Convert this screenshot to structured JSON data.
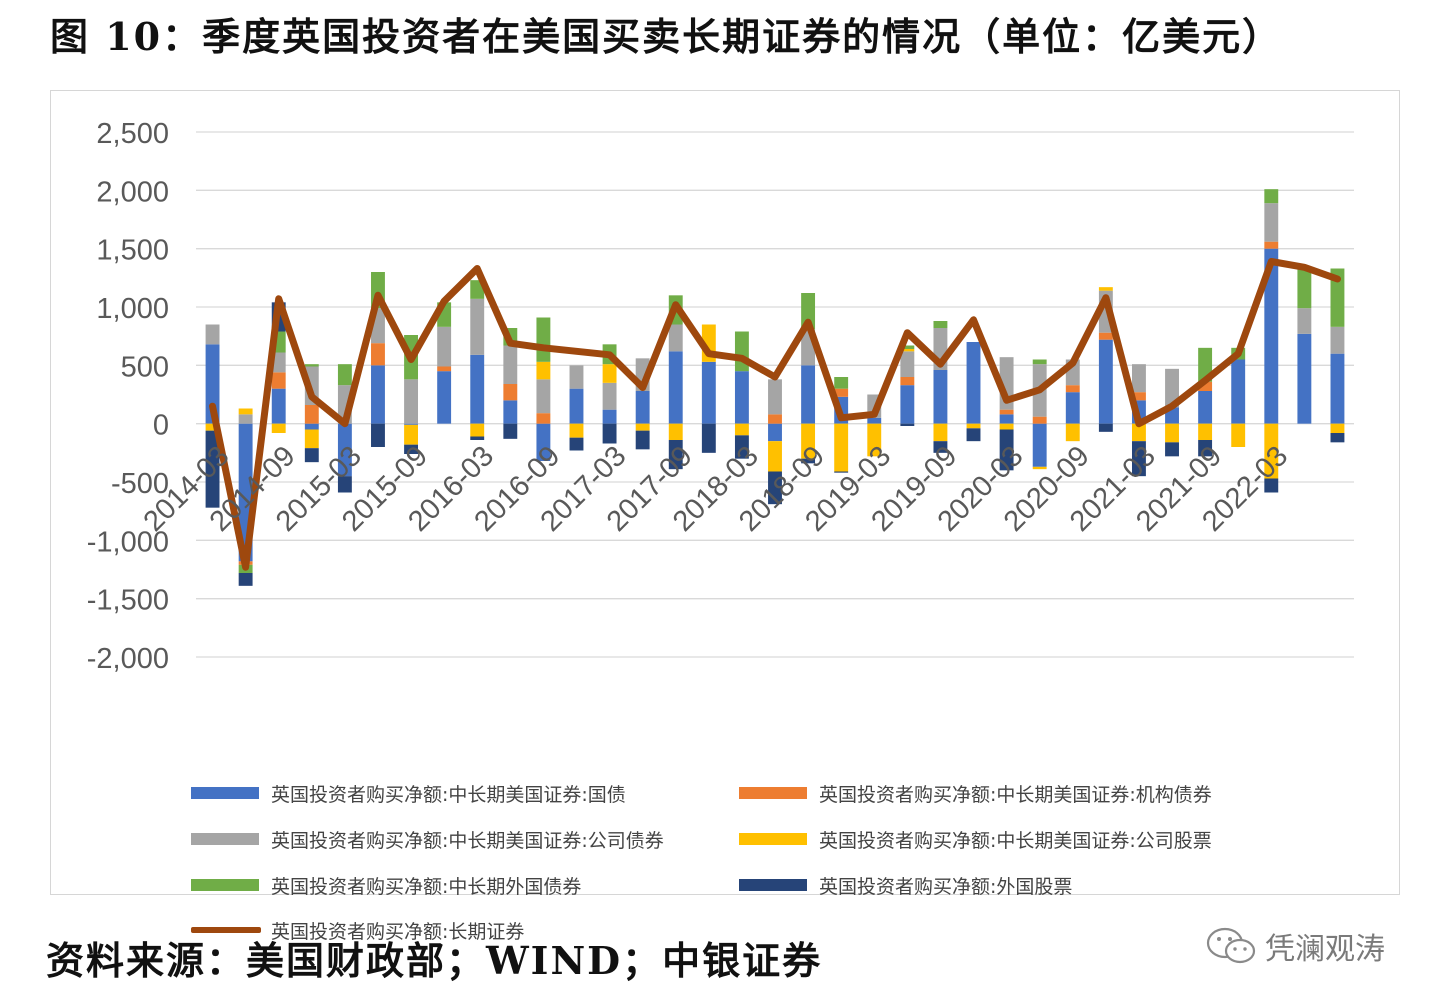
{
  "title": "图 10：季度英国投资者在美国买卖长期证券的情况（单位：亿美元）",
  "footer": "资料来源：美国财政部；WIND；中银证券",
  "watermark": "凭澜观涛",
  "colors": {
    "s1": "#4472c4",
    "s2": "#ed7d31",
    "s3": "#a5a5a5",
    "s4": "#ffc000",
    "s5": "#70ad47",
    "s6": "#264478",
    "line": "#9e480e",
    "grid": "#d9d9d9"
  },
  "chart_data": {
    "type": "bar",
    "stacked": true,
    "ylim": [
      -2000,
      2500
    ],
    "yticks": [
      2500,
      2000,
      1500,
      1000,
      500,
      0,
      -500,
      -1000,
      -1500,
      -2000
    ],
    "ytick_labels": [
      "2,500",
      "2,000",
      "1,500",
      "1,000",
      "500",
      "0",
      "-500",
      "-1,000",
      "-1,500",
      "-2,000"
    ],
    "xtick_labels": [
      "2014-03",
      "2014-09",
      "2015-03",
      "2015-09",
      "2016-03",
      "2016-09",
      "2017-03",
      "2017-09",
      "2018-03",
      "2018-09",
      "2019-03",
      "2019-09",
      "2020-03",
      "2020-09",
      "2021-03",
      "2021-09",
      "2022-03"
    ],
    "categories": [
      "2014-03",
      "2014-06",
      "2014-09",
      "2014-12",
      "2015-03",
      "2015-06",
      "2015-09",
      "2015-12",
      "2016-03",
      "2016-06",
      "2016-09",
      "2016-12",
      "2017-03",
      "2017-06",
      "2017-09",
      "2017-12",
      "2018-03",
      "2018-06",
      "2018-09",
      "2018-12",
      "2019-03",
      "2019-06",
      "2019-09",
      "2019-12",
      "2020-03",
      "2020-06",
      "2020-09",
      "2020-12",
      "2021-03",
      "2021-06",
      "2021-09",
      "2021-12",
      "2022-03",
      "2022-06",
      "2022-09"
    ],
    "grid": true,
    "legend_position": "bottom",
    "series": [
      {
        "name": "英国投资者购买净额:中长期美国证券:国债",
        "type": "bar",
        "values": [
          680,
          -1180,
          300,
          -50,
          -450,
          500,
          -10,
          450,
          590,
          200,
          -320,
          300,
          120,
          280,
          620,
          530,
          450,
          -150,
          500,
          230,
          50,
          330,
          460,
          700,
          80,
          -370,
          270,
          720,
          200,
          140,
          280,
          550,
          1500,
          770,
          600
        ]
      },
      {
        "name": "英国投资者购买净额:中长期美国证券:机构债券",
        "type": "bar",
        "values": [
          0,
          -30,
          140,
          160,
          0,
          190,
          0,
          40,
          0,
          140,
          90,
          0,
          0,
          0,
          0,
          0,
          0,
          80,
          0,
          70,
          0,
          70,
          0,
          0,
          40,
          60,
          60,
          60,
          70,
          0,
          80,
          0,
          60,
          0,
          0
        ]
      },
      {
        "name": "英国投资者购买净额:中长期美国证券:公司债券",
        "type": "bar",
        "values": [
          170,
          80,
          170,
          330,
          330,
          300,
          380,
          340,
          480,
          330,
          290,
          200,
          230,
          280,
          230,
          0,
          0,
          300,
          310,
          0,
          200,
          220,
          360,
          0,
          450,
          450,
          220,
          360,
          240,
          330,
          0,
          0,
          330,
          220,
          230
        ]
      },
      {
        "name": "英国投资者购买净额:中长期美国证券:公司股票",
        "type": "bar",
        "values": [
          -60,
          50,
          -80,
          -160,
          0,
          0,
          -170,
          0,
          -110,
          0,
          150,
          -120,
          160,
          -60,
          -140,
          320,
          -100,
          -260,
          -300,
          -410,
          -280,
          20,
          -150,
          -40,
          -50,
          -20,
          -150,
          30,
          -150,
          -160,
          -140,
          -200,
          -470,
          0,
          -80
        ]
      },
      {
        "name": "英国投资者购买净额:中长期外国债券",
        "type": "bar",
        "values": [
          0,
          -70,
          180,
          20,
          180,
          310,
          380,
          210,
          160,
          150,
          380,
          0,
          170,
          0,
          250,
          0,
          340,
          0,
          310,
          100,
          0,
          30,
          60,
          0,
          0,
          40,
          0,
          0,
          0,
          0,
          290,
          100,
          120,
          340,
          500
        ]
      },
      {
        "name": "英国投资者购买净额:外国股票",
        "type": "bar",
        "values": [
          -660,
          -110,
          250,
          -120,
          -140,
          -200,
          -80,
          0,
          -30,
          -130,
          0,
          -110,
          -170,
          -160,
          -250,
          -250,
          -200,
          -280,
          -40,
          -10,
          0,
          -20,
          -100,
          -110,
          -350,
          0,
          0,
          -70,
          -300,
          -120,
          -140,
          0,
          -120,
          0,
          -80
        ]
      },
      {
        "name": "英国投资者购买净额:长期证券",
        "type": "line",
        "values": [
          150,
          -1230,
          1070,
          230,
          0,
          1100,
          550,
          1050,
          1330,
          690,
          650,
          620,
          590,
          310,
          1020,
          600,
          560,
          400,
          870,
          50,
          80,
          780,
          510,
          890,
          200,
          290,
          520,
          1080,
          0,
          150,
          370,
          600,
          1390,
          1340,
          1240
        ]
      }
    ]
  }
}
